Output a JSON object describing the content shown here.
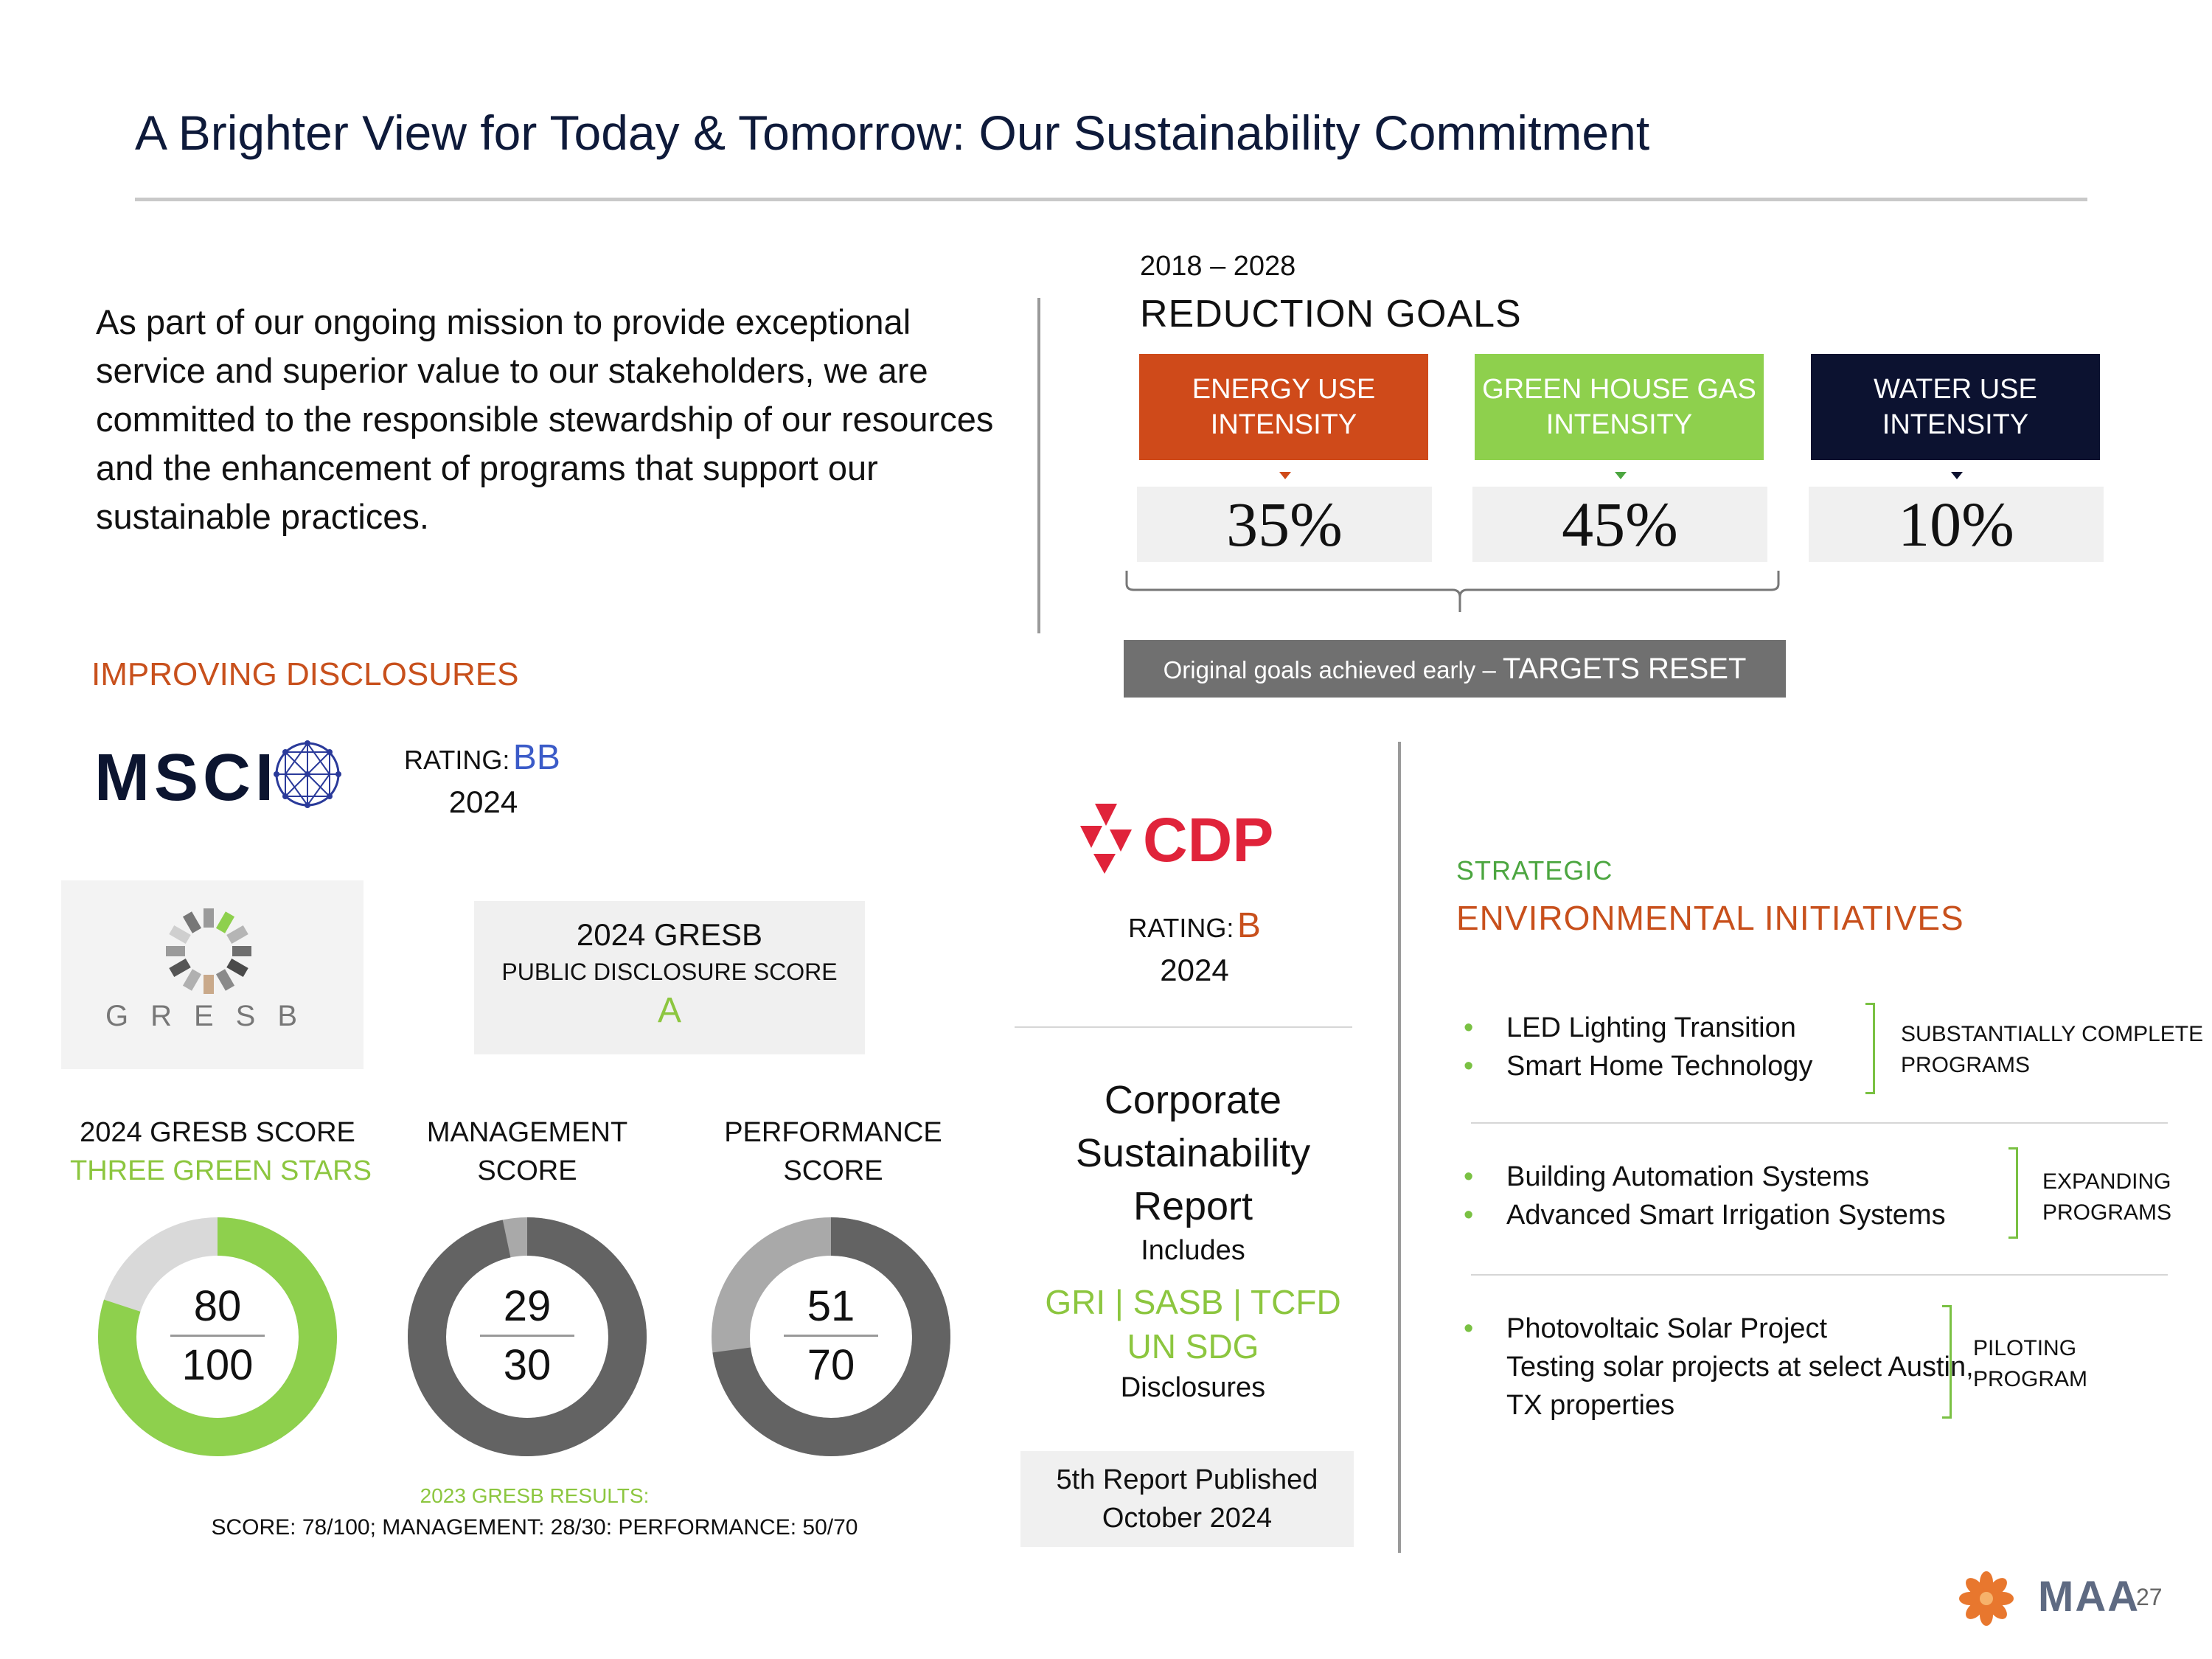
{
  "title": "A Brighter View for Today & Tomorrow: Our Sustainability Commitment",
  "intro": "As part of our ongoing mission to provide exceptional service and superior value to our stakeholders, we are committed to the responsible stewardship of our resources and the enhancement of programs that support our sustainable practices.",
  "reduction": {
    "years": "2018 – 2028",
    "title": "REDUCTION GOALS",
    "goals": [
      {
        "label_line1": "ENERGY USE",
        "label_line2": "INTENSITY",
        "value": "35%",
        "color": "#cf4a1a"
      },
      {
        "label_line1": "GREEN HOUSE GAS",
        "label_line2": "INTENSITY",
        "value": "45%",
        "color": "#8ed04d"
      },
      {
        "label_line1": "WATER USE",
        "label_line2": "INTENSITY",
        "value": "10%",
        "color": "#0c1230"
      }
    ],
    "reset_small": "Original goals achieved early – ",
    "reset_big": "TARGETS RESET"
  },
  "disclosures": {
    "heading": "IMPROVING DISCLOSURES",
    "msci": {
      "logo_text": "MSCI",
      "rating_label": "RATING:",
      "rating": "BB",
      "year": "2024",
      "rating_color": "#3b5bc8"
    },
    "gresb_logo_text": "GRESB",
    "gresb_box": {
      "line1": "2024 GRESB",
      "line2": "PUBLIC DISCLOSURE SCORE",
      "grade": "A"
    }
  },
  "donuts": [
    {
      "label_line1": "2024 GRESB SCORE",
      "label_line2": "THREE GREEN STARS",
      "score": 80,
      "max": 100,
      "fill": "#8ed04d",
      "track": "#d9d9d9"
    },
    {
      "label_line1": "MANAGEMENT",
      "label_line2": "SCORE",
      "score": 29,
      "max": 30,
      "fill": "#636363",
      "track": "#a9a9a9"
    },
    {
      "label_line1": "PERFORMANCE",
      "label_line2": "SCORE",
      "score": 51,
      "max": 70,
      "fill": "#636363",
      "track": "#a9a9a9"
    }
  ],
  "results_2023": {
    "heading": "2023 GRESB RESULTS:",
    "detail": "SCORE: 78/100; MANAGEMENT: 28/30: PERFORMANCE: 50/70"
  },
  "cdp": {
    "logo_text": "CDP",
    "rating_label": "RATING:",
    "rating": "B",
    "year": "2024",
    "rating_color": "#c8501c"
  },
  "csr": {
    "title_line1": "Corporate",
    "title_line2": "Sustainability",
    "title_line3": "Report",
    "includes": "Includes",
    "frameworks_line1": "GRI | SASB | TCFD",
    "frameworks_line2": "UN SDG",
    "disclosures": "Disclosures",
    "published_line1": "5th Report Published",
    "published_line2": "October 2024"
  },
  "initiatives": {
    "top": "STRATEGIC",
    "title": "ENVIRONMENTAL INITIATIVES",
    "groups": [
      {
        "items": [
          "LED Lighting Transition",
          "Smart Home Technology"
        ],
        "label_line1": "SUBSTANTIALLY COMPLETE",
        "label_line2": "PROGRAMS"
      },
      {
        "items": [
          "Building Automation Systems",
          "Advanced Smart Irrigation Systems"
        ],
        "label_line1": "EXPANDING",
        "label_line2": "PROGRAMS"
      },
      {
        "items": [
          "Photovoltaic Solar Project"
        ],
        "sub_line1": "Testing solar projects at select Austin,",
        "sub_line2": "TX properties",
        "label_line1": "PILOTING",
        "label_line2": "PROGRAM"
      }
    ]
  },
  "footer": {
    "brand": "MAA",
    "page": "27"
  }
}
